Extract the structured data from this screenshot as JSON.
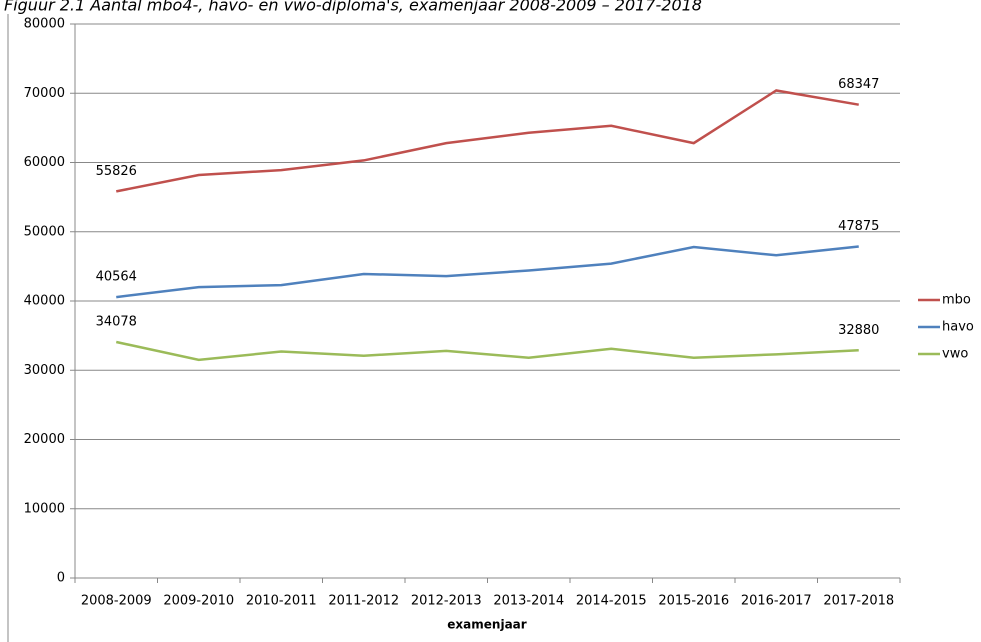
{
  "chart_data": {
    "type": "line",
    "title": "Figuur 2.1 Aantal mbo4-, havo- en vwo-diploma's, examenjaar 2008-2009 – 2017-2018",
    "x_label": "examenjaar",
    "categories": [
      "2008-2009",
      "2009-2010",
      "2010-2011",
      "2011-2012",
      "2012-2013",
      "2013-2014",
      "2014-2015",
      "2015-2016",
      "2016-2017",
      "2017-2018"
    ],
    "series": [
      {
        "name": "mbo",
        "color": "#c0504d",
        "values": [
          55826,
          58200,
          58900,
          60300,
          62800,
          64300,
          65300,
          62800,
          70400,
          68347
        ]
      },
      {
        "name": "havo",
        "color": "#4f81bd",
        "values": [
          40564,
          42000,
          42300,
          43900,
          43600,
          44400,
          45400,
          47800,
          46600,
          47875
        ]
      },
      {
        "name": "vwo",
        "color": "#9bbb59",
        "values": [
          34078,
          31500,
          32700,
          32100,
          32800,
          31800,
          33100,
          31800,
          32300,
          32880
        ]
      }
    ],
    "ylim": [
      0,
      80000
    ],
    "yticks": [
      0,
      10000,
      20000,
      30000,
      40000,
      50000,
      60000,
      70000,
      80000
    ],
    "grid": true,
    "legend": "right"
  }
}
